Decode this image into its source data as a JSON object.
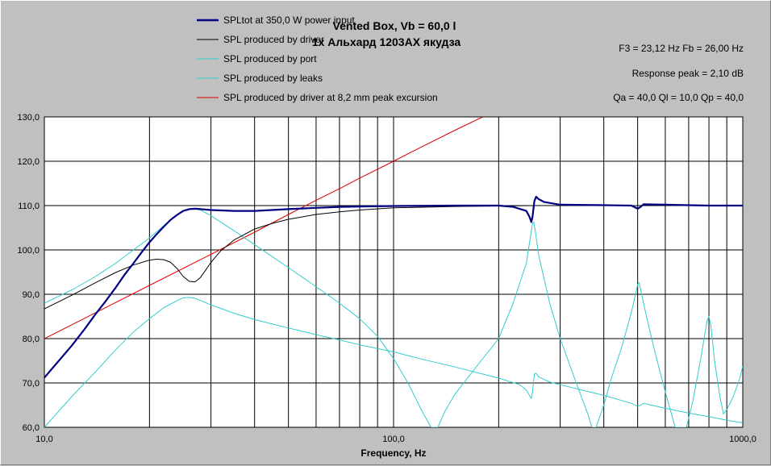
{
  "chart_data": {
    "type": "line",
    "title": "Vented Box, Vb = 60,0 l",
    "subtitle": "1x Альхард 1203AX якудза",
    "info": [
      "F3 = 23,12 Hz  Fb = 26,00 Hz",
      "Response peak = 2,10 dB",
      "Qa = 40,0  Ql = 10,0  Qp = 40,0"
    ],
    "xlabel": "Frequency, Hz",
    "ylabel": "",
    "x_scale": "log",
    "xlim": [
      10,
      1000
    ],
    "ylim": [
      60,
      130
    ],
    "grid": true,
    "legend_position": "top-left",
    "y_ticks": [
      "60,0",
      "70,0",
      "80,0",
      "90,0",
      "100,0",
      "110,0",
      "120,0",
      "130,0"
    ],
    "x_ticks": [
      "10,0",
      "100,0",
      "1000,0"
    ],
    "colors": {
      "background": "#c0c0c0",
      "plot_background": "#ffffff",
      "grid": "#000000",
      "total": "#000080",
      "driver": "#000000",
      "port": "#33cccc",
      "leaks": "#33cccc",
      "excursion": "#e00000"
    },
    "series": [
      {
        "name": "SPLtot at 350,0 W power input",
        "color": "#000080",
        "points": [
          [
            10,
            71.2
          ],
          [
            11,
            75
          ],
          [
            12,
            78.5
          ],
          [
            13,
            82
          ],
          [
            14,
            85.5
          ],
          [
            15,
            88.5
          ],
          [
            16,
            91.5
          ],
          [
            17,
            94.5
          ],
          [
            18,
            97
          ],
          [
            19,
            99.5
          ],
          [
            20,
            101.7
          ],
          [
            21,
            103.6
          ],
          [
            22,
            105.3
          ],
          [
            23,
            106.8
          ],
          [
            24,
            107.9
          ],
          [
            25,
            108.8
          ],
          [
            26,
            109.2
          ],
          [
            27,
            109.3
          ],
          [
            28,
            109.2
          ],
          [
            30,
            109
          ],
          [
            35,
            108.8
          ],
          [
            40,
            108.8
          ],
          [
            50,
            109.2
          ],
          [
            60,
            109.5
          ],
          [
            70,
            109.7
          ],
          [
            80,
            109.8
          ],
          [
            100,
            109.9
          ],
          [
            150,
            110
          ],
          [
            200,
            110
          ],
          [
            220,
            109.7
          ],
          [
            240,
            108.8
          ],
          [
            245,
            107.5
          ],
          [
            248,
            106.3
          ],
          [
            250,
            107.5
          ],
          [
            253,
            111
          ],
          [
            256,
            112
          ],
          [
            260,
            111.5
          ],
          [
            270,
            110.8
          ],
          [
            300,
            110.2
          ],
          [
            400,
            110.1
          ],
          [
            480,
            110
          ],
          [
            500,
            109.3
          ],
          [
            510,
            109.7
          ],
          [
            520,
            110.3
          ],
          [
            600,
            110.2
          ],
          [
            700,
            110.1
          ],
          [
            800,
            110
          ],
          [
            900,
            110
          ],
          [
            1000,
            110
          ]
        ]
      },
      {
        "name": "SPL produced by driver",
        "color": "#000000",
        "points": [
          [
            10,
            86.7
          ],
          [
            12,
            89.8
          ],
          [
            14,
            92.6
          ],
          [
            16,
            94.9
          ],
          [
            18,
            96.6
          ],
          [
            20,
            97.7
          ],
          [
            21,
            97.9
          ],
          [
            22,
            97.8
          ],
          [
            23,
            97.2
          ],
          [
            24,
            95.8
          ],
          [
            25,
            94
          ],
          [
            26,
            92.9
          ],
          [
            27,
            92.8
          ],
          [
            28,
            93.8
          ],
          [
            29,
            95.5
          ],
          [
            30,
            97.2
          ],
          [
            32,
            99.8
          ],
          [
            35,
            102.3
          ],
          [
            40,
            104.7
          ],
          [
            45,
            106
          ],
          [
            50,
            106.9
          ],
          [
            60,
            108
          ],
          [
            70,
            108.6
          ],
          [
            80,
            109
          ],
          [
            100,
            109.5
          ],
          [
            150,
            109.8
          ],
          [
            200,
            109.9
          ],
          [
            250,
            110
          ],
          [
            1000,
            110
          ]
        ]
      },
      {
        "name": "SPL produced by port",
        "color": "#33cccc",
        "points": [
          [
            10,
            88
          ],
          [
            12,
            91
          ],
          [
            14,
            94
          ],
          [
            16,
            97
          ],
          [
            18,
            100
          ],
          [
            20,
            102.7
          ],
          [
            22,
            105.5
          ],
          [
            24,
            108
          ],
          [
            26,
            109.3
          ],
          [
            27,
            109.3
          ],
          [
            28,
            109
          ],
          [
            30,
            107.7
          ],
          [
            35,
            104.3
          ],
          [
            40,
            101.2
          ],
          [
            50,
            96
          ],
          [
            60,
            91.7
          ],
          [
            70,
            88
          ],
          [
            80,
            84.5
          ],
          [
            90,
            80.5
          ],
          [
            100,
            75.5
          ],
          [
            110,
            70
          ],
          [
            120,
            64
          ],
          [
            128,
            60
          ],
          [
            134,
            60
          ],
          [
            140,
            63.5
          ],
          [
            150,
            67.5
          ],
          [
            170,
            73
          ],
          [
            200,
            80
          ],
          [
            220,
            88
          ],
          [
            240,
            97
          ],
          [
            250,
            106
          ],
          [
            252,
            106.3
          ],
          [
            255,
            104
          ],
          [
            260,
            99
          ],
          [
            280,
            88
          ],
          [
            300,
            80
          ],
          [
            330,
            71
          ],
          [
            360,
            63
          ],
          [
            370,
            60
          ],
          [
            380,
            60
          ],
          [
            400,
            65
          ],
          [
            420,
            71
          ],
          [
            450,
            78
          ],
          [
            480,
            86
          ],
          [
            500,
            92.2
          ],
          [
            505,
            92.6
          ],
          [
            510,
            91
          ],
          [
            530,
            85
          ],
          [
            560,
            77
          ],
          [
            600,
            68
          ],
          [
            630,
            62
          ],
          [
            640,
            60
          ],
          [
            690,
            60
          ],
          [
            720,
            66
          ],
          [
            760,
            76
          ],
          [
            790,
            84
          ],
          [
            800,
            85
          ],
          [
            810,
            83
          ],
          [
            830,
            75
          ],
          [
            860,
            67
          ],
          [
            880,
            63
          ],
          [
            900,
            64
          ],
          [
            940,
            67
          ],
          [
            980,
            71
          ],
          [
            1000,
            73.8
          ]
        ]
      },
      {
        "name": "SPL produced by leaks",
        "color": "#33cccc",
        "points": [
          [
            10,
            60
          ],
          [
            12,
            67
          ],
          [
            14,
            72.5
          ],
          [
            16,
            77.5
          ],
          [
            18,
            81.5
          ],
          [
            20,
            84.5
          ],
          [
            22,
            87
          ],
          [
            24,
            88.6
          ],
          [
            25,
            89.2
          ],
          [
            26,
            89.3
          ],
          [
            27,
            89.1
          ],
          [
            28,
            88.6
          ],
          [
            30,
            87.6
          ],
          [
            35,
            85.7
          ],
          [
            40,
            84.3
          ],
          [
            50,
            82.4
          ],
          [
            60,
            80.9
          ],
          [
            70,
            79.7
          ],
          [
            80,
            78.6
          ],
          [
            100,
            77
          ],
          [
            120,
            75.4
          ],
          [
            150,
            73.6
          ],
          [
            200,
            71.1
          ],
          [
            230,
            69.6
          ],
          [
            240,
            68.4
          ],
          [
            248,
            66.5
          ],
          [
            250,
            68
          ],
          [
            253,
            72
          ],
          [
            256,
            72.2
          ],
          [
            260,
            71.4
          ],
          [
            280,
            70.2
          ],
          [
            300,
            69.6
          ],
          [
            400,
            67.2
          ],
          [
            480,
            65.4
          ],
          [
            500,
            64.7
          ],
          [
            510,
            65
          ],
          [
            520,
            65.4
          ],
          [
            600,
            64.3
          ],
          [
            700,
            63.2
          ],
          [
            800,
            62.4
          ],
          [
            900,
            61.6
          ],
          [
            1000,
            61
          ]
        ]
      },
      {
        "name": "SPL produced by driver at 8,2 mm peak excursion",
        "color": "#e00000",
        "points": [
          [
            10,
            80
          ],
          [
            20,
            92
          ],
          [
            30,
            99
          ],
          [
            40,
            104
          ],
          [
            50,
            108
          ],
          [
            60,
            111.2
          ],
          [
            70,
            113.8
          ],
          [
            80,
            116.2
          ],
          [
            100,
            120
          ],
          [
            120,
            123.2
          ],
          [
            150,
            127
          ],
          [
            180,
            130
          ]
        ]
      }
    ]
  }
}
